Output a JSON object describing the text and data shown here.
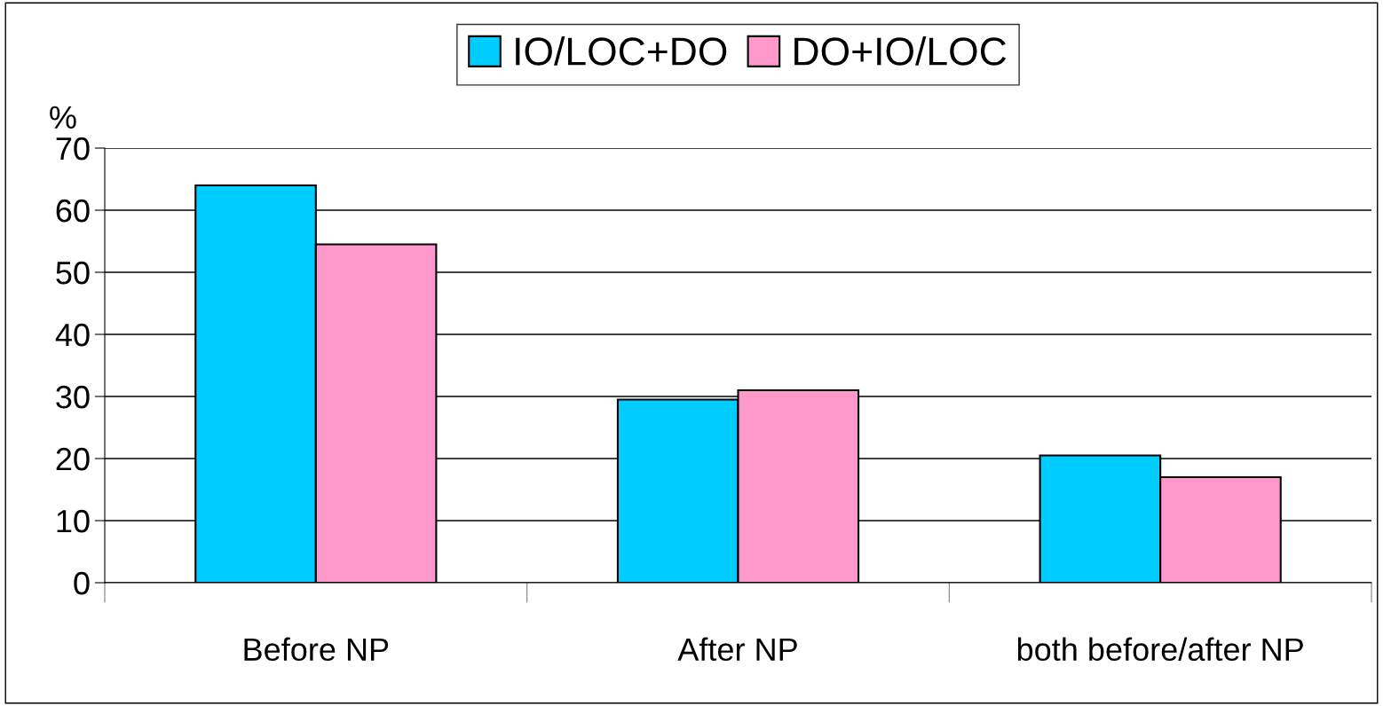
{
  "chart_data": {
    "type": "bar",
    "ylabel": "%",
    "categories": [
      "Before NP",
      "After NP",
      "both before/after NP"
    ],
    "series": [
      {
        "name": "IO/LOC+DO",
        "color": "#00ccff",
        "values": [
          64,
          29.5,
          20.5
        ]
      },
      {
        "name": "DO+IO/LOC",
        "color": "#ff99cc",
        "values": [
          54.5,
          31,
          17
        ]
      }
    ],
    "ylim": [
      0,
      70
    ],
    "yticks": [
      0,
      10,
      20,
      30,
      40,
      50,
      60,
      70
    ],
    "grid": "y",
    "legend": "top"
  }
}
